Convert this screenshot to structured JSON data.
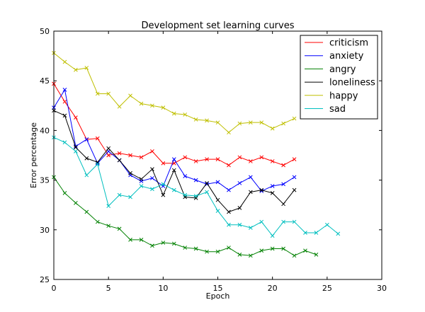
{
  "chart_data": {
    "type": "line",
    "title": "Development set learning curves",
    "xlabel": "Epoch",
    "ylabel": "Error percentage",
    "xlim": [
      0,
      30
    ],
    "ylim": [
      25,
      50
    ],
    "xticks": [
      0,
      5,
      10,
      15,
      20,
      25,
      30
    ],
    "yticks": [
      25,
      30,
      35,
      40,
      45,
      50
    ],
    "grid": false,
    "legend_position": "top-right",
    "marker": "x",
    "series": [
      {
        "name": "criticism",
        "color": "#ff0000",
        "x": [
          0,
          1,
          2,
          3,
          4,
          5,
          6,
          7,
          8,
          9,
          10,
          11,
          12,
          13,
          14,
          15,
          16,
          17,
          18,
          19,
          20,
          21,
          22
        ],
        "y": [
          44.7,
          42.9,
          41.3,
          39.1,
          39.2,
          37.5,
          37.7,
          37.5,
          37.3,
          37.9,
          36.7,
          36.7,
          37.3,
          36.9,
          37.1,
          37.1,
          36.5,
          37.3,
          36.9,
          37.3,
          36.9,
          36.5,
          37.1
        ]
      },
      {
        "name": "anxiety",
        "color": "#0000ff",
        "x": [
          0,
          1,
          2,
          3,
          4,
          5,
          6,
          7,
          8,
          9,
          10,
          11,
          12,
          13,
          14,
          15,
          16,
          17,
          18,
          19,
          20,
          21,
          22
        ],
        "y": [
          42.3,
          44.1,
          38.4,
          39.1,
          36.7,
          37.9,
          37.0,
          35.5,
          34.9,
          35.2,
          34.4,
          37.1,
          35.4,
          35.0,
          34.6,
          34.8,
          34.0,
          34.7,
          35.3,
          33.9,
          34.4,
          34.6,
          35.3
        ]
      },
      {
        "name": "angry",
        "color": "#008000",
        "x": [
          0,
          1,
          2,
          3,
          4,
          5,
          6,
          7,
          8,
          9,
          10,
          11,
          12,
          13,
          14,
          15,
          16,
          17,
          18,
          19,
          20,
          21,
          22,
          23,
          24
        ],
        "y": [
          35.3,
          33.7,
          32.7,
          31.8,
          30.8,
          30.4,
          30.1,
          29.0,
          29.0,
          28.4,
          28.7,
          28.6,
          28.2,
          28.1,
          27.8,
          27.8,
          28.2,
          27.5,
          27.4,
          27.9,
          28.1,
          28.1,
          27.4,
          27.9,
          27.5
        ]
      },
      {
        "name": "loneliness",
        "color": "#000000",
        "x": [
          0,
          1,
          2,
          3,
          4,
          5,
          6,
          7,
          8,
          9,
          10,
          11,
          12,
          13,
          14,
          15,
          16,
          17,
          18,
          19,
          20,
          21,
          22
        ],
        "y": [
          42.0,
          41.5,
          38.3,
          37.2,
          36.8,
          38.2,
          37.0,
          35.7,
          35.1,
          36.1,
          33.5,
          36.0,
          33.3,
          33.2,
          34.7,
          33.0,
          31.8,
          32.2,
          33.8,
          34.0,
          33.7,
          32.6,
          34.0
        ]
      },
      {
        "name": "happy",
        "color": "#bfbf00",
        "x": [
          0,
          1,
          2,
          3,
          4,
          5,
          6,
          7,
          8,
          9,
          10,
          11,
          12,
          13,
          14,
          15,
          16,
          17,
          18,
          19,
          20,
          21,
          22
        ],
        "y": [
          47.8,
          46.9,
          46.1,
          46.3,
          43.7,
          43.7,
          42.4,
          43.5,
          42.7,
          42.5,
          42.3,
          41.7,
          41.6,
          41.1,
          41.0,
          40.8,
          39.8,
          40.7,
          40.8,
          40.8,
          40.2,
          40.7,
          41.2
        ]
      },
      {
        "name": "sad",
        "color": "#00bfbf",
        "x": [
          0,
          1,
          2,
          3,
          4,
          5,
          6,
          7,
          8,
          9,
          10,
          11,
          12,
          13,
          14,
          15,
          16,
          17,
          18,
          19,
          20,
          21,
          22,
          23,
          24,
          25,
          26
        ],
        "y": [
          39.3,
          38.8,
          37.9,
          35.5,
          36.6,
          32.4,
          33.5,
          33.3,
          34.4,
          34.1,
          34.6,
          34.0,
          33.5,
          33.4,
          33.8,
          31.9,
          30.5,
          30.5,
          30.2,
          30.8,
          29.4,
          30.8,
          30.8,
          29.7,
          29.7,
          30.5,
          29.6
        ]
      }
    ]
  }
}
